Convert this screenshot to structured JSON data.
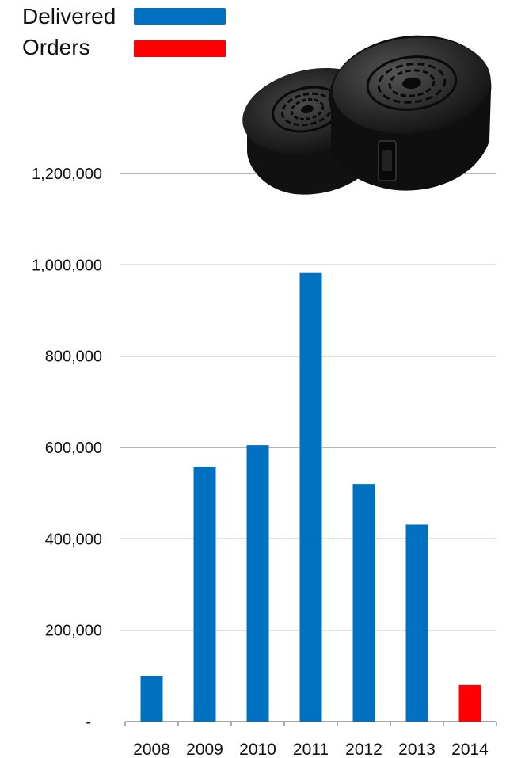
{
  "legend": {
    "items": [
      {
        "label": "Delivered",
        "color": "#0070C0"
      },
      {
        "label": "Orders",
        "color": "#FF0000"
      }
    ]
  },
  "product_image": {
    "icon": "filter-cartridge-icon"
  },
  "chart_data": {
    "type": "bar",
    "categories": [
      "2008",
      "2009",
      "2010",
      "2011",
      "2012",
      "2013",
      "2014"
    ],
    "series": [
      {
        "name": "Delivered",
        "color": "#0070C0",
        "values": [
          100000,
          558000,
          605000,
          982000,
          520000,
          431000,
          null
        ]
      },
      {
        "name": "Orders",
        "color": "#FF0000",
        "values": [
          null,
          null,
          null,
          null,
          null,
          null,
          80000
        ]
      }
    ],
    "ylim": [
      0,
      1200000
    ],
    "yticks": [
      0,
      200000,
      400000,
      600000,
      800000,
      1000000,
      1200000
    ],
    "ytick_labels": [
      "-",
      "200,000",
      "400,000",
      "600,000",
      "800,000",
      "1,000,000",
      "1,200,000"
    ],
    "grid": true,
    "legend_position": "top-left"
  }
}
